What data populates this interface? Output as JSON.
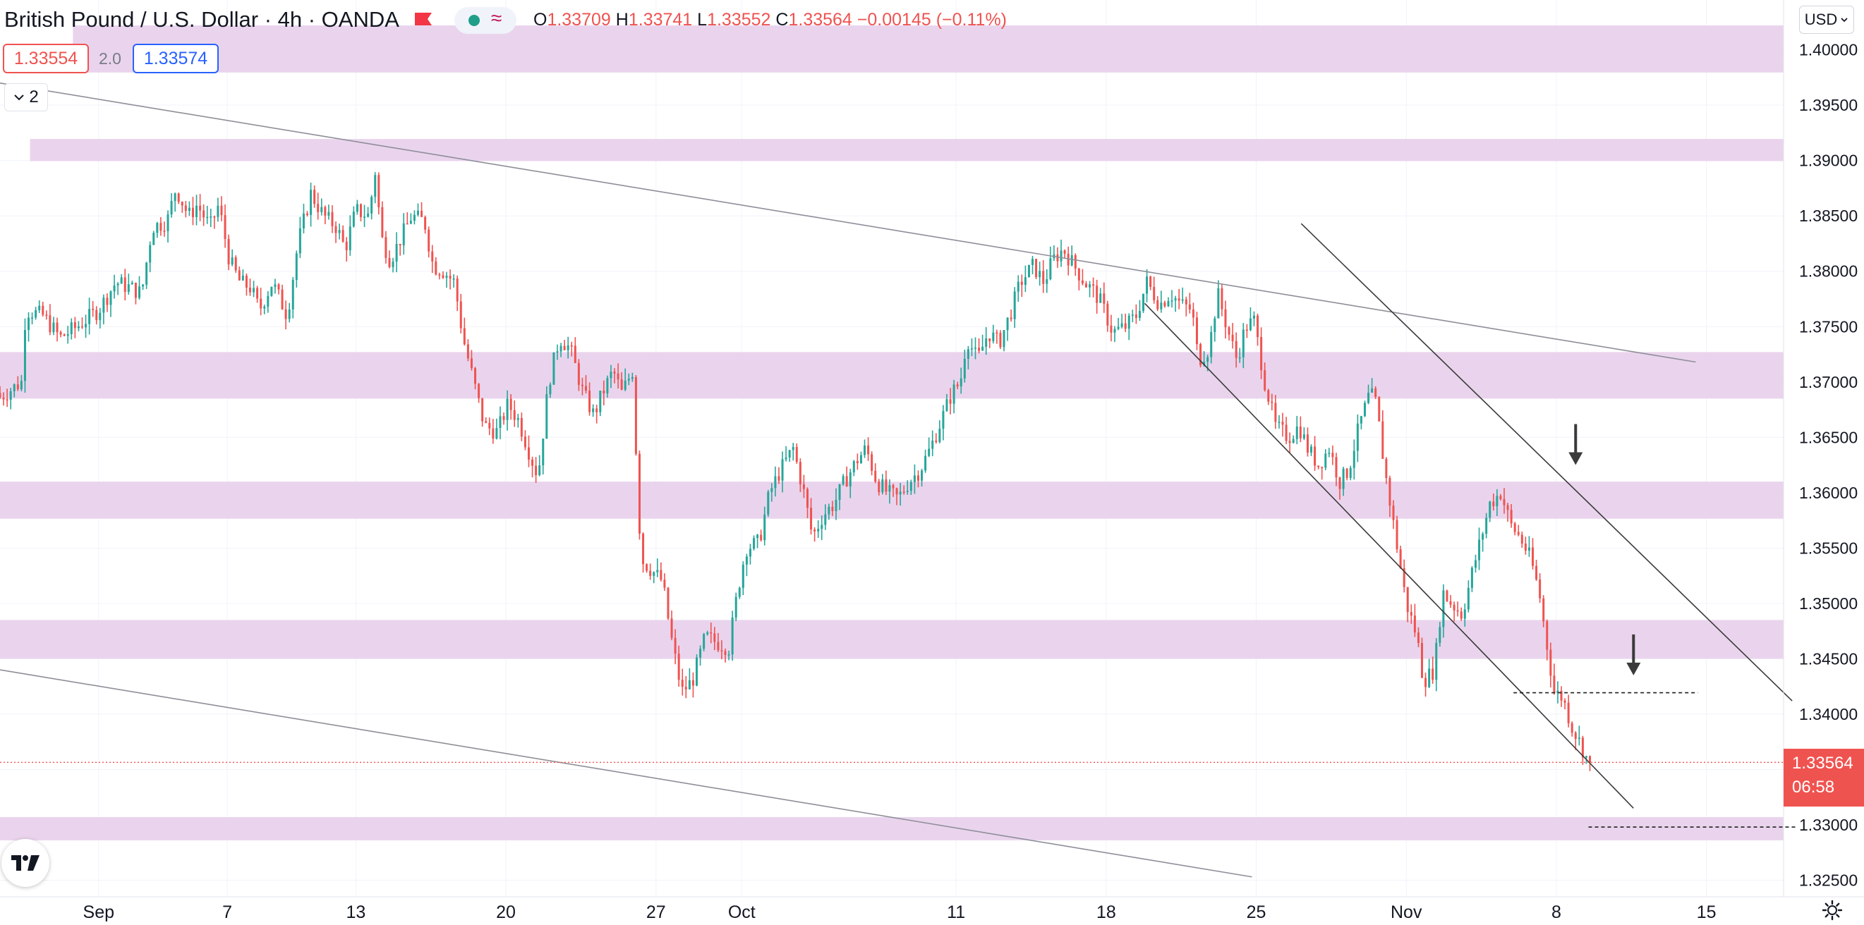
{
  "header": {
    "title": "British Pound / U.S. Dollar · 4h · OANDA",
    "ohlc": [
      {
        "key": "O",
        "value": "1.33709"
      },
      {
        "key": "H",
        "value": "1.33741"
      },
      {
        "key": "L",
        "value": "1.33552"
      },
      {
        "key": "C",
        "value": "1.33564"
      }
    ],
    "change": "−0.00145 (−0.11%)",
    "bid": "1.33554",
    "spread": "2.0",
    "ask": "1.33574",
    "indicator_count": "2",
    "currency": "USD"
  },
  "last_price": {
    "value": "1.33564",
    "countdown": "06:58"
  },
  "colors": {
    "up": "#26a69a",
    "down": "#ef5350",
    "zone": "#e6cdea",
    "trendline": "#8e8e99",
    "channel": "#3a3a3a",
    "price_line": "#ef5350"
  },
  "icons": [
    "flag-icon",
    "status-dot-icon",
    "wave-icon",
    "chevron-down-icon",
    "tradingview-logo-icon",
    "settings-gear-icon",
    "arrow-down-icon"
  ],
  "chart_data": {
    "type": "candlestick",
    "timeframe": "4h",
    "x_ticks": [
      {
        "label": "Sep",
        "x": 0
      },
      {
        "label": "7",
        "x": 6
      },
      {
        "label": "13",
        "x": 12
      },
      {
        "label": "20",
        "x": 19
      },
      {
        "label": "27",
        "x": 26
      },
      {
        "label": "Oct",
        "x": 30
      },
      {
        "label": "11",
        "x": 40
      },
      {
        "label": "18",
        "x": 47
      },
      {
        "label": "25",
        "x": 54
      },
      {
        "label": "Nov",
        "x": 61
      },
      {
        "label": "8",
        "x": 68
      },
      {
        "label": "15",
        "x": 75
      }
    ],
    "y_ticks": [
      "1.32500",
      "1.33000",
      "1.33500",
      "1.34000",
      "1.34500",
      "1.35000",
      "1.35500",
      "1.36000",
      "1.36500",
      "1.37000",
      "1.37500",
      "1.38000",
      "1.38500",
      "1.39000",
      "1.39500",
      "1.40000"
    ],
    "ylim": [
      1.3235,
      1.4045
    ],
    "xlim": [
      -4.6,
      78.6
    ],
    "anchors": [
      [
        -4.6,
        1.3686
      ],
      [
        -3.6,
        1.37
      ],
      [
        -3.4,
        1.3765
      ],
      [
        -2.6,
        1.376
      ],
      [
        -1.8,
        1.374
      ],
      [
        -1.0,
        1.375
      ],
      [
        0.0,
        1.3765
      ],
      [
        0.8,
        1.379
      ],
      [
        1.5,
        1.3785
      ],
      [
        2.0,
        1.378
      ],
      [
        2.5,
        1.384
      ],
      [
        3.2,
        1.3845
      ],
      [
        3.6,
        1.3875
      ],
      [
        4.2,
        1.385
      ],
      [
        4.6,
        1.386
      ],
      [
        5.2,
        1.384
      ],
      [
        5.6,
        1.386
      ],
      [
        6.1,
        1.381
      ],
      [
        6.6,
        1.379
      ],
      [
        7.1,
        1.3785
      ],
      [
        7.5,
        1.3765
      ],
      [
        8.1,
        1.379
      ],
      [
        8.8,
        1.376
      ],
      [
        9.3,
        1.3825
      ],
      [
        9.9,
        1.387
      ],
      [
        10.5,
        1.385
      ],
      [
        11.1,
        1.384
      ],
      [
        11.5,
        1.382
      ],
      [
        12.0,
        1.3855
      ],
      [
        12.6,
        1.385
      ],
      [
        12.9,
        1.389
      ],
      [
        13.2,
        1.383
      ],
      [
        13.6,
        1.381
      ],
      [
        14.1,
        1.383
      ],
      [
        14.6,
        1.385
      ],
      [
        15.2,
        1.3845
      ],
      [
        15.6,
        1.3805
      ],
      [
        16.1,
        1.38
      ],
      [
        16.6,
        1.379
      ],
      [
        17.0,
        1.374
      ],
      [
        17.5,
        1.37
      ],
      [
        18.0,
        1.366
      ],
      [
        18.6,
        1.3655
      ],
      [
        19.1,
        1.368
      ],
      [
        19.6,
        1.3665
      ],
      [
        20.2,
        1.363
      ],
      [
        20.5,
        1.3615
      ],
      [
        21.0,
        1.37
      ],
      [
        21.5,
        1.374
      ],
      [
        22.0,
        1.373
      ],
      [
        22.6,
        1.369
      ],
      [
        23.1,
        1.367
      ],
      [
        23.5,
        1.369
      ],
      [
        24.0,
        1.371
      ],
      [
        24.4,
        1.369
      ],
      [
        24.9,
        1.371
      ],
      [
        25.3,
        1.354
      ],
      [
        25.8,
        1.353
      ],
      [
        26.3,
        1.352
      ],
      [
        26.7,
        1.347
      ],
      [
        27.2,
        1.342
      ],
      [
        27.7,
        1.343
      ],
      [
        28.3,
        1.347
      ],
      [
        28.8,
        1.3465
      ],
      [
        29.4,
        1.346
      ],
      [
        29.8,
        1.351
      ],
      [
        30.2,
        1.355
      ],
      [
        30.8,
        1.3555
      ],
      [
        31.3,
        1.36
      ],
      [
        31.8,
        1.362
      ],
      [
        32.4,
        1.364
      ],
      [
        32.9,
        1.36
      ],
      [
        33.3,
        1.356
      ],
      [
        33.8,
        1.358
      ],
      [
        34.3,
        1.359
      ],
      [
        34.8,
        1.361
      ],
      [
        35.4,
        1.363
      ],
      [
        35.8,
        1.364
      ],
      [
        36.3,
        1.361
      ],
      [
        36.8,
        1.36
      ],
      [
        37.3,
        1.3595
      ],
      [
        37.8,
        1.361
      ],
      [
        38.3,
        1.362
      ],
      [
        38.8,
        1.364
      ],
      [
        39.3,
        1.3665
      ],
      [
        39.8,
        1.369
      ],
      [
        40.2,
        1.37
      ],
      [
        40.5,
        1.374
      ],
      [
        41.0,
        1.372
      ],
      [
        41.5,
        1.3745
      ],
      [
        42.0,
        1.3735
      ],
      [
        42.5,
        1.376
      ],
      [
        43.0,
        1.379
      ],
      [
        43.6,
        1.3805
      ],
      [
        44.1,
        1.379
      ],
      [
        44.5,
        1.381
      ],
      [
        45.0,
        1.382
      ],
      [
        45.5,
        1.3805
      ],
      [
        46.0,
        1.379
      ],
      [
        46.5,
        1.378
      ],
      [
        46.8,
        1.377
      ],
      [
        47.3,
        1.3745
      ],
      [
        47.9,
        1.375
      ],
      [
        48.4,
        1.376
      ],
      [
        48.9,
        1.379
      ],
      [
        49.5,
        1.377
      ],
      [
        50.0,
        1.378
      ],
      [
        50.5,
        1.377
      ],
      [
        51.0,
        1.3765
      ],
      [
        51.3,
        1.372
      ],
      [
        51.8,
        1.373
      ],
      [
        52.2,
        1.378
      ],
      [
        52.7,
        1.3745
      ],
      [
        53.1,
        1.372
      ],
      [
        53.5,
        1.375
      ],
      [
        53.9,
        1.3755
      ],
      [
        54.4,
        1.37
      ],
      [
        54.9,
        1.366
      ],
      [
        55.5,
        1.365
      ],
      [
        56.0,
        1.366
      ],
      [
        56.4,
        1.364
      ],
      [
        56.9,
        1.3625
      ],
      [
        57.4,
        1.364
      ],
      [
        57.9,
        1.361
      ],
      [
        58.3,
        1.362
      ],
      [
        58.8,
        1.366
      ],
      [
        59.3,
        1.369
      ],
      [
        59.6,
        1.368
      ],
      [
        60.0,
        1.362
      ],
      [
        60.5,
        1.356
      ],
      [
        61.0,
        1.35
      ],
      [
        61.5,
        1.347
      ],
      [
        61.8,
        1.343
      ],
      [
        62.3,
        1.344
      ],
      [
        62.7,
        1.351
      ],
      [
        63.1,
        1.35
      ],
      [
        63.6,
        1.349
      ],
      [
        64.1,
        1.353
      ],
      [
        64.5,
        1.356
      ],
      [
        64.9,
        1.359
      ],
      [
        65.4,
        1.36
      ],
      [
        65.9,
        1.357
      ],
      [
        66.3,
        1.356
      ],
      [
        66.8,
        1.354
      ],
      [
        67.2,
        1.351
      ],
      [
        67.5,
        1.347
      ],
      [
        67.9,
        1.342
      ],
      [
        68.3,
        1.3415
      ],
      [
        68.7,
        1.339
      ],
      [
        69.2,
        1.337
      ],
      [
        69.5,
        1.3356
      ]
    ],
    "zones": [
      {
        "from": 1.39795,
        "to": 1.4022,
        "start_x": -1.2
      },
      {
        "from": 1.38995,
        "to": 1.39195,
        "start_x": -3.2
      },
      {
        "from": 1.3685,
        "to": 1.3727,
        "start_x": -4.6
      },
      {
        "from": 1.35765,
        "to": 1.361,
        "start_x": -4.6
      },
      {
        "from": 1.345,
        "to": 1.3485,
        "start_x": -4.6
      },
      {
        "from": 1.3286,
        "to": 1.3307,
        "start_x": -4.6
      }
    ],
    "trendlines": [
      {
        "kind": "upper-trendline",
        "points": [
          [
            -4.6,
            1.397
          ],
          [
            74.5,
            1.3718
          ]
        ]
      },
      {
        "kind": "lower-trendline",
        "points": [
          [
            -4.6,
            1.344
          ],
          [
            53.8,
            1.3253
          ]
        ]
      },
      {
        "kind": "channel-top",
        "points": [
          [
            56.1,
            1.3843
          ],
          [
            79.0,
            1.3412
          ]
        ]
      },
      {
        "kind": "channel-bottom",
        "points": [
          [
            48.8,
            1.3771
          ],
          [
            71.6,
            1.3315
          ]
        ]
      }
    ],
    "dashed_levels": [
      {
        "y": 1.34193,
        "from_x": 66.0,
        "to_x": 74.6
      },
      {
        "y": 1.3298,
        "from_x": 69.5,
        "to_x": 79.2
      }
    ],
    "arrows": [
      {
        "x": 68.9,
        "tip_y": 1.3625
      },
      {
        "x": 71.6,
        "tip_y": 1.3435
      }
    ],
    "last_price_y": 1.33564
  }
}
